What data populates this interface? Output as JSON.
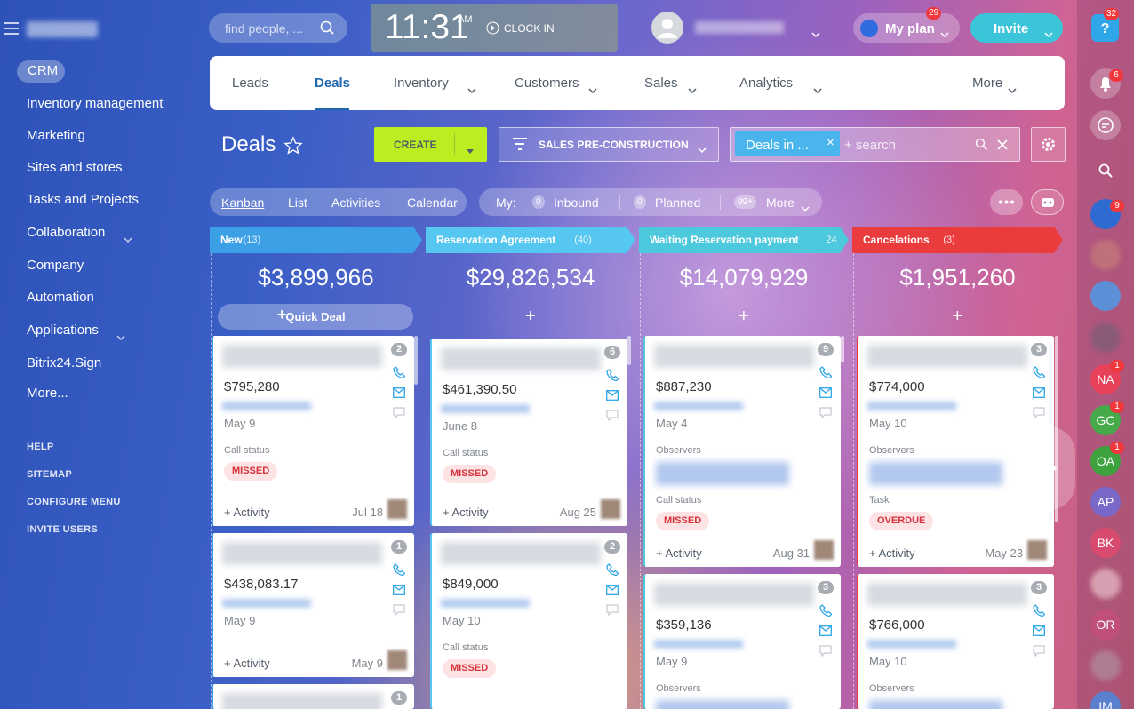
{
  "sidebar": {
    "menu": [
      "CRM",
      "Inventory management",
      "Marketing",
      "Sites and stores",
      "Tasks and Projects",
      "Collaboration",
      "Company",
      "Automation",
      "Applications",
      "Bitrix24.Sign",
      "More..."
    ],
    "links": [
      "HELP",
      "SITEMAP",
      "CONFIGURE MENU",
      "INVITE USERS"
    ]
  },
  "topbar": {
    "search_placeholder": "find people, ...",
    "time": "11:31",
    "ampm": "AM",
    "clock_in": "CLOCK IN",
    "my_plan": "My plan",
    "my_plan_badge": "29",
    "invite": "Invite",
    "help_badge": "32"
  },
  "nav": [
    "Leads",
    "Deals",
    "Inventory",
    "Customers",
    "Sales",
    "Analytics",
    "More"
  ],
  "toolbar": {
    "title": "Deals",
    "create": "CREATE",
    "pipeline": "SALES PRE-CONSTRUCTION",
    "filter_tag": "Deals in ...",
    "search_placeholder": "+ search"
  },
  "views": [
    "Kanban",
    "List",
    "Activities",
    "Calendar"
  ],
  "counters": {
    "label": "My:",
    "items": [
      {
        "count": "0",
        "label": "Inbound"
      },
      {
        "count": "0",
        "label": "Planned"
      },
      {
        "count": "99+",
        "label": "More"
      }
    ]
  },
  "columns": [
    {
      "name": "New",
      "count": "(13)",
      "total": "$3,899,966",
      "add": "Quick Deal",
      "cards": [
        {
          "badge": "2",
          "amount": "$795,280",
          "date": "May 9",
          "fields": [
            {
              "label": "Call status",
              "tag": "MISSED"
            }
          ],
          "activity": "+ Activity",
          "deadline": "Jul 18"
        },
        {
          "badge": "1",
          "amount": "$438,083.17",
          "date": "May 9",
          "fields": [],
          "activity": "+ Activity",
          "deadline": "May 9"
        },
        {
          "badge": "1"
        }
      ]
    },
    {
      "name": "Reservation Agreement",
      "count": "(40)",
      "total": "$29,826,534",
      "cards": [
        {
          "badge": "6",
          "amount": "$461,390.50",
          "date": "June 8",
          "fields": [
            {
              "label": "Call status",
              "tag": "MISSED"
            }
          ],
          "activity": "+ Activity",
          "deadline": "Aug 25"
        },
        {
          "badge": "2",
          "amount": "$849,000",
          "date": "May 10",
          "fields": [
            {
              "label": "Call status",
              "tag": "MISSED"
            }
          ]
        }
      ]
    },
    {
      "name": "Waiting Reservation payment",
      "count": "24",
      "total": "$14,079,929",
      "cards": [
        {
          "badge": "9",
          "amount": "$887,230",
          "date": "May 4",
          "fields": [
            {
              "label": "Observers"
            },
            {
              "label": "Call status",
              "tag": "MISSED"
            }
          ],
          "activity": "+ Activity",
          "deadline": "Aug 31"
        },
        {
          "badge": "3",
          "amount": "$359,136",
          "date": "May 9",
          "fields": [
            {
              "label": "Observers"
            }
          ]
        }
      ]
    },
    {
      "name": "Cancelations",
      "count": "(3)",
      "total": "$1,951,260",
      "cards": [
        {
          "badge": "3",
          "amount": "$774,000",
          "date": "May 10",
          "fields": [
            {
              "label": "Observers"
            },
            {
              "label": "Task",
              "tag": "OVERDUE"
            }
          ],
          "activity": "+ Activity",
          "deadline": "May 23"
        },
        {
          "badge": "3",
          "amount": "$766,000",
          "date": "May 10",
          "fields": [
            {
              "label": "Observers"
            }
          ]
        }
      ]
    }
  ],
  "rail": {
    "bell_badge": "6",
    "group_badge": "9",
    "avatars": [
      {
        "initials": "NA",
        "badge": "1"
      },
      {
        "initials": "GC",
        "badge": "1"
      },
      {
        "initials": "OA",
        "badge": "1"
      },
      {
        "initials": "AP"
      },
      {
        "initials": "BK"
      },
      {
        "initials": "OR"
      },
      {
        "initials": "IM"
      }
    ]
  }
}
